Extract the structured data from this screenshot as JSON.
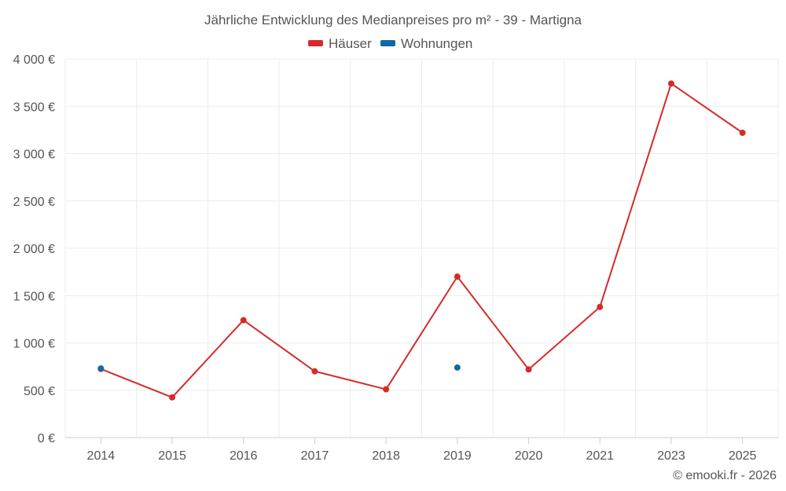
{
  "chart_data": {
    "type": "line",
    "title": "Jährliche Entwicklung des Medianpreises pro m² - 39 - Martigna",
    "categories": [
      "2014",
      "2015",
      "2016",
      "2017",
      "2018",
      "2019",
      "2020",
      "2021",
      "2023",
      "2025"
    ],
    "ylim": [
      0,
      4000
    ],
    "yticks": [
      "0 €",
      "500 €",
      "1 000 €",
      "1 500 €",
      "2 000 €",
      "2 500 €",
      "3 000 €",
      "3 500 €",
      "4 000 €"
    ],
    "yticks_values": [
      0,
      500,
      1000,
      1500,
      2000,
      2500,
      3000,
      3500,
      4000
    ],
    "grid": true,
    "legend_position": "top-center",
    "series": [
      {
        "name": "Häuser",
        "color": "#d62a2a",
        "values": [
          725,
          425,
          1240,
          700,
          510,
          1700,
          720,
          1380,
          3740,
          3220
        ]
      },
      {
        "name": "Wohnungen",
        "color": "#0f6aa3",
        "values": [
          730,
          null,
          null,
          null,
          null,
          740,
          null,
          null,
          null,
          null
        ]
      }
    ],
    "credit": "© emooki.fr - 2026"
  }
}
